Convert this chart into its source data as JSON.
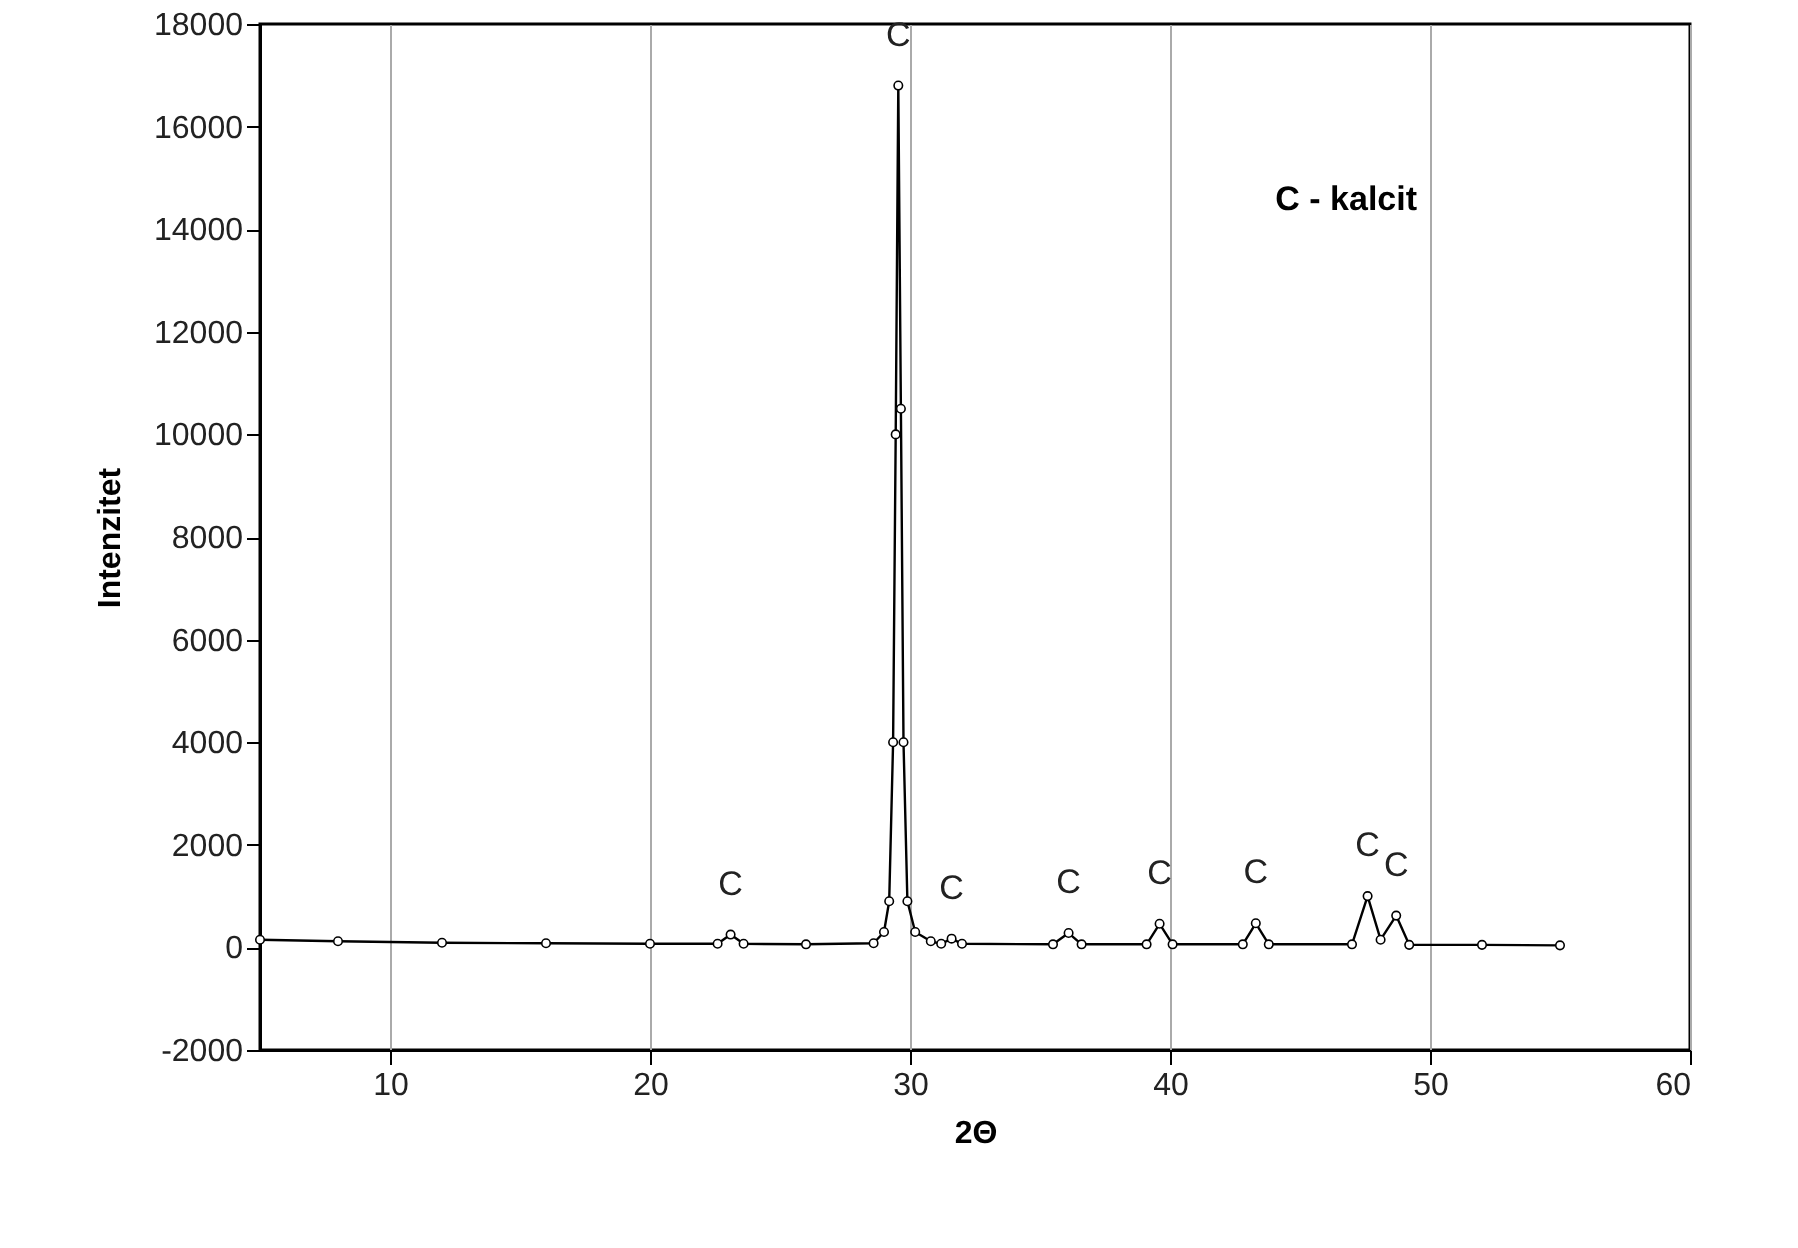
{
  "chart_data": {
    "type": "line",
    "xlabel": "2Θ",
    "ylabel": "Intenzitet",
    "x": [
      5,
      8,
      12,
      16,
      20,
      22.6,
      23.1,
      23.6,
      26,
      28.6,
      29.0,
      29.2,
      29.35,
      29.45,
      29.55,
      29.65,
      29.75,
      29.9,
      30.2,
      30.8,
      31.2,
      31.6,
      32.0,
      35.5,
      36.1,
      36.6,
      39.1,
      39.6,
      40.1,
      42.8,
      43.3,
      43.8,
      47.0,
      47.6,
      48.1,
      48.7,
      49.2,
      52,
      55
    ],
    "series": [
      {
        "color": "#000000",
        "values": [
          150,
          120,
          90,
          80,
          70,
          70,
          250,
          70,
          60,
          80,
          300,
          900,
          4000,
          10000,
          16800,
          10500,
          4000,
          900,
          300,
          120,
          70,
          170,
          70,
          60,
          280,
          60,
          60,
          460,
          60,
          60,
          470,
          60,
          60,
          1000,
          150,
          620,
          50,
          50,
          40
        ]
      }
    ],
    "xlim": [
      5,
      60
    ],
    "xticks": [
      10,
      20,
      30,
      40,
      50,
      60
    ],
    "ylim": [
      -2000,
      18000
    ],
    "yticks": [
      -2000,
      0,
      2000,
      4000,
      6000,
      8000,
      10000,
      12000,
      14000,
      16000,
      18000
    ],
    "grid": "x",
    "marker": "circle",
    "line_style": "solid",
    "annotations": [
      {
        "text": "C",
        "x": 23.1,
        "y": 250
      },
      {
        "text": "C",
        "x": 29.55,
        "y": 16800
      },
      {
        "text": "C",
        "x": 31.6,
        "y": 170
      },
      {
        "text": "C",
        "x": 36.1,
        "y": 280
      },
      {
        "text": "C",
        "x": 39.6,
        "y": 460
      },
      {
        "text": "C",
        "x": 43.3,
        "y": 470
      },
      {
        "text": "C",
        "x": 47.6,
        "y": 1000
      },
      {
        "text": "C",
        "x": 48.7,
        "y": 620
      },
      "C - kalcit"
    ]
  }
}
